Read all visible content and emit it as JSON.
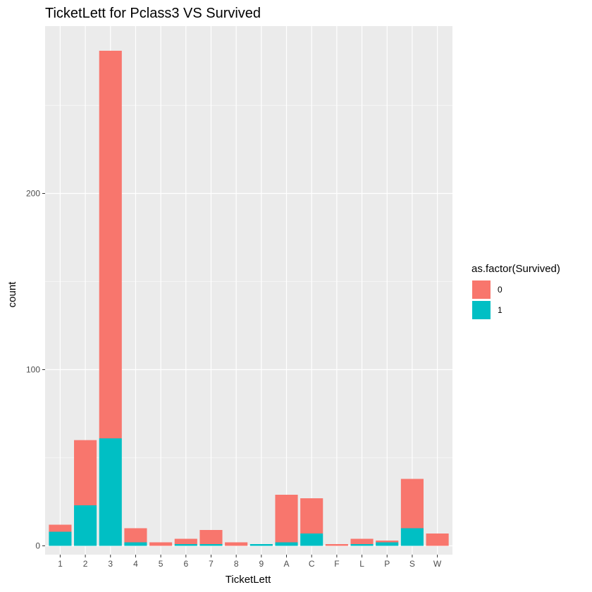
{
  "chart_data": {
    "type": "bar",
    "stacked": true,
    "title": "TicketLett for Pclass3 VS Survived",
    "xlabel": "TicketLett",
    "ylabel": "count",
    "categories": [
      "1",
      "2",
      "3",
      "4",
      "5",
      "6",
      "7",
      "8",
      "9",
      "A",
      "C",
      "F",
      "L",
      "P",
      "S",
      "W"
    ],
    "series": [
      {
        "name": "0",
        "color": "#f8766d",
        "values": [
          4,
          37,
          220,
          8,
          2,
          3,
          8,
          2,
          0,
          27,
          20,
          1,
          3,
          1,
          28,
          7
        ]
      },
      {
        "name": "1",
        "color": "#00bfc4",
        "values": [
          8,
          23,
          61,
          2,
          0,
          1,
          1,
          0,
          1,
          2,
          7,
          0,
          1,
          2,
          10,
          0
        ]
      }
    ],
    "ylim": [
      -5,
      295
    ],
    "yticks": [
      0,
      100,
      200
    ],
    "grid": true,
    "legend": {
      "title": "as.factor(Survived)",
      "position": "right"
    },
    "panel_background": "#ebebeb",
    "grid_color": "#ffffff"
  }
}
